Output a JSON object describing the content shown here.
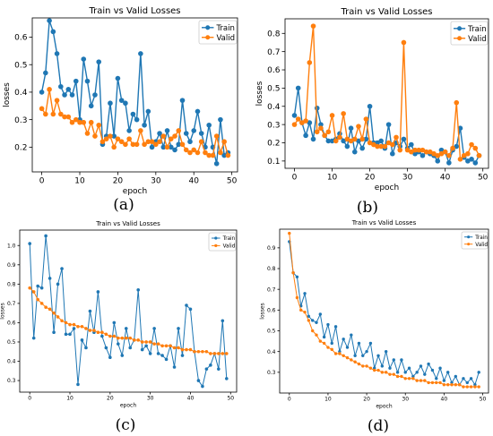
{
  "captions": [
    "(a)",
    "(b)",
    "(c)",
    "(d)"
  ],
  "colors": {
    "train": "#1f77b4",
    "valid": "#ff7f0e"
  },
  "chart_data": [
    {
      "type": "line",
      "title": "Train vs Valid Losses",
      "xlabel": "epoch",
      "ylabel": "losses",
      "xlim": [
        -2.5,
        51.5
      ],
      "ylim": [
        0.11,
        0.67
      ],
      "xticks": [
        0,
        10,
        20,
        30,
        40,
        50
      ],
      "yticks": [
        0.2,
        0.3,
        0.4,
        0.5,
        0.6
      ],
      "legend": "top-right",
      "x": [
        0,
        1,
        2,
        3,
        4,
        5,
        6,
        7,
        8,
        9,
        10,
        11,
        12,
        13,
        14,
        15,
        16,
        17,
        18,
        19,
        20,
        21,
        22,
        23,
        24,
        25,
        26,
        27,
        28,
        29,
        30,
        31,
        32,
        33,
        34,
        35,
        36,
        37,
        38,
        39,
        40,
        41,
        42,
        43,
        44,
        45,
        46,
        47,
        48,
        49
      ],
      "series": [
        {
          "name": "Train",
          "values": [
            0.4,
            0.47,
            0.66,
            0.62,
            0.54,
            0.42,
            0.39,
            0.41,
            0.39,
            0.44,
            0.3,
            0.52,
            0.44,
            0.35,
            0.39,
            0.51,
            0.21,
            0.24,
            0.36,
            0.24,
            0.45,
            0.37,
            0.36,
            0.26,
            0.32,
            0.3,
            0.54,
            0.28,
            0.33,
            0.2,
            0.22,
            0.25,
            0.2,
            0.26,
            0.2,
            0.19,
            0.21,
            0.37,
            0.25,
            0.22,
            0.26,
            0.33,
            0.25,
            0.2,
            0.28,
            0.2,
            0.14,
            0.3,
            0.17,
            0.18
          ]
        },
        {
          "name": "Valid",
          "values": [
            0.34,
            0.32,
            0.41,
            0.32,
            0.37,
            0.32,
            0.31,
            0.31,
            0.29,
            0.3,
            0.29,
            0.29,
            0.25,
            0.29,
            0.24,
            0.28,
            0.22,
            0.23,
            0.24,
            0.2,
            0.23,
            0.22,
            0.21,
            0.23,
            0.21,
            0.21,
            0.26,
            0.21,
            0.22,
            0.22,
            0.21,
            0.22,
            0.24,
            0.2,
            0.23,
            0.24,
            0.26,
            0.21,
            0.19,
            0.18,
            0.19,
            0.18,
            0.22,
            0.18,
            0.17,
            0.17,
            0.24,
            0.18,
            0.22,
            0.17
          ]
        }
      ]
    },
    {
      "type": "line",
      "title": "Train vs Valid Losses",
      "xlabel": "epoch",
      "ylabel": "losses",
      "xlim": [
        -2.5,
        51.5
      ],
      "ylim": [
        0.06,
        0.88
      ],
      "xticks": [
        0,
        10,
        20,
        30,
        40,
        50
      ],
      "yticks": [
        0.1,
        0.2,
        0.3,
        0.4,
        0.5,
        0.6,
        0.7,
        0.8
      ],
      "legend": "top-right",
      "x": [
        0,
        1,
        2,
        3,
        4,
        5,
        6,
        7,
        8,
        9,
        10,
        11,
        12,
        13,
        14,
        15,
        16,
        17,
        18,
        19,
        20,
        21,
        22,
        23,
        24,
        25,
        26,
        27,
        28,
        29,
        30,
        31,
        32,
        33,
        34,
        35,
        36,
        37,
        38,
        39,
        40,
        41,
        42,
        43,
        44,
        45,
        46,
        47,
        48,
        49
      ],
      "series": [
        {
          "name": "Train",
          "values": [
            0.35,
            0.5,
            0.31,
            0.24,
            0.31,
            0.22,
            0.39,
            0.3,
            0.24,
            0.21,
            0.21,
            0.22,
            0.25,
            0.21,
            0.18,
            0.28,
            0.15,
            0.21,
            0.17,
            0.22,
            0.4,
            0.2,
            0.2,
            0.21,
            0.17,
            0.3,
            0.14,
            0.2,
            0.18,
            0.22,
            0.17,
            0.19,
            0.14,
            0.15,
            0.13,
            0.15,
            0.14,
            0.13,
            0.1,
            0.16,
            0.15,
            0.09,
            0.16,
            0.18,
            0.28,
            0.12,
            0.1,
            0.11,
            0.09,
            0.13
          ]
        },
        {
          "name": "Valid",
          "values": [
            0.3,
            0.33,
            0.31,
            0.32,
            0.64,
            0.84,
            0.26,
            0.28,
            0.24,
            0.26,
            0.35,
            0.21,
            0.23,
            0.36,
            0.22,
            0.21,
            0.22,
            0.29,
            0.22,
            0.33,
            0.2,
            0.19,
            0.18,
            0.18,
            0.18,
            0.2,
            0.19,
            0.23,
            0.16,
            0.75,
            0.16,
            0.15,
            0.16,
            0.16,
            0.16,
            0.15,
            0.15,
            0.14,
            0.13,
            0.14,
            0.15,
            0.13,
            0.17,
            0.42,
            0.11,
            0.13,
            0.14,
            0.19,
            0.17,
            0.13
          ]
        }
      ]
    },
    {
      "type": "line",
      "title": "Train vs Valid Losses",
      "xlabel": "epoch",
      "ylabel": "losses",
      "xlim": [
        -2.5,
        51.5
      ],
      "ylim": [
        0.24,
        1.08
      ],
      "xticks": [
        0,
        10,
        20,
        30,
        40,
        50
      ],
      "yticks": [
        0.3,
        0.4,
        0.5,
        0.6,
        0.7,
        0.8,
        0.9,
        1.0
      ],
      "legend": "top-right",
      "x": [
        0,
        1,
        2,
        3,
        4,
        5,
        6,
        7,
        8,
        9,
        10,
        11,
        12,
        13,
        14,
        15,
        16,
        17,
        18,
        19,
        20,
        21,
        22,
        23,
        24,
        25,
        26,
        27,
        28,
        29,
        30,
        31,
        32,
        33,
        34,
        35,
        36,
        37,
        38,
        39,
        40,
        41,
        42,
        43,
        44,
        45,
        46,
        47,
        48,
        49
      ],
      "series": [
        {
          "name": "Train",
          "values": [
            1.01,
            0.52,
            0.79,
            0.78,
            1.05,
            0.83,
            0.55,
            0.8,
            0.88,
            0.54,
            0.54,
            0.57,
            0.28,
            0.51,
            0.47,
            0.66,
            0.55,
            0.76,
            0.53,
            0.47,
            0.42,
            0.6,
            0.49,
            0.43,
            0.57,
            0.47,
            0.51,
            0.77,
            0.46,
            0.48,
            0.44,
            0.57,
            0.44,
            0.43,
            0.41,
            0.48,
            0.37,
            0.57,
            0.43,
            0.69,
            0.67,
            0.45,
            0.3,
            0.27,
            0.36,
            0.38,
            0.44,
            0.36,
            0.61,
            0.31
          ]
        },
        {
          "name": "Valid",
          "values": [
            0.78,
            0.76,
            0.72,
            0.7,
            0.68,
            0.67,
            0.65,
            0.63,
            0.61,
            0.6,
            0.59,
            0.59,
            0.58,
            0.58,
            0.57,
            0.56,
            0.56,
            0.55,
            0.55,
            0.54,
            0.53,
            0.53,
            0.52,
            0.52,
            0.52,
            0.52,
            0.51,
            0.51,
            0.5,
            0.5,
            0.5,
            0.49,
            0.49,
            0.48,
            0.48,
            0.48,
            0.47,
            0.47,
            0.46,
            0.46,
            0.46,
            0.45,
            0.45,
            0.45,
            0.45,
            0.44,
            0.44,
            0.44,
            0.44,
            0.44
          ]
        }
      ]
    },
    {
      "type": "line",
      "title": "Train vs Valid Losses",
      "xlabel": "epoch",
      "ylabel": "losses",
      "xlim": [
        -2.5,
        51.5
      ],
      "ylim": [
        0.2,
        0.99
      ],
      "xticks": [
        0,
        10,
        20,
        30,
        40,
        50
      ],
      "yticks": [
        0.3,
        0.4,
        0.5,
        0.6,
        0.7,
        0.8,
        0.9
      ],
      "legend": "top-right",
      "x": [
        0,
        1,
        2,
        3,
        4,
        5,
        6,
        7,
        8,
        9,
        10,
        11,
        12,
        13,
        14,
        15,
        16,
        17,
        18,
        19,
        20,
        21,
        22,
        23,
        24,
        25,
        26,
        27,
        28,
        29,
        30,
        31,
        32,
        33,
        34,
        35,
        36,
        37,
        38,
        39,
        40,
        41,
        42,
        43,
        44,
        45,
        46,
        47,
        48,
        49
      ],
      "series": [
        {
          "name": "Train",
          "values": [
            0.93,
            0.78,
            0.76,
            0.62,
            0.68,
            0.57,
            0.55,
            0.54,
            0.58,
            0.47,
            0.53,
            0.44,
            0.52,
            0.4,
            0.46,
            0.42,
            0.48,
            0.38,
            0.44,
            0.38,
            0.4,
            0.44,
            0.32,
            0.38,
            0.33,
            0.4,
            0.32,
            0.36,
            0.3,
            0.36,
            0.3,
            0.32,
            0.28,
            0.3,
            0.33,
            0.29,
            0.34,
            0.31,
            0.27,
            0.32,
            0.26,
            0.3,
            0.25,
            0.28,
            0.24,
            0.27,
            0.25,
            0.27,
            0.24,
            0.3
          ]
        },
        {
          "name": "Valid",
          "values": [
            0.97,
            0.78,
            0.66,
            0.6,
            0.59,
            0.55,
            0.5,
            0.48,
            0.45,
            0.44,
            0.42,
            0.41,
            0.39,
            0.39,
            0.38,
            0.37,
            0.36,
            0.35,
            0.34,
            0.33,
            0.33,
            0.32,
            0.31,
            0.31,
            0.3,
            0.3,
            0.29,
            0.29,
            0.28,
            0.28,
            0.27,
            0.27,
            0.27,
            0.26,
            0.26,
            0.26,
            0.25,
            0.25,
            0.25,
            0.25,
            0.24,
            0.24,
            0.24,
            0.24,
            0.24,
            0.23,
            0.23,
            0.23,
            0.23,
            0.23
          ]
        }
      ]
    }
  ]
}
